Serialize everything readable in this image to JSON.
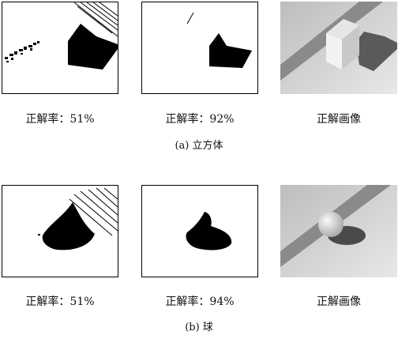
{
  "figures": [
    {
      "panels": [
        {
          "caption": "正解率：51%"
        },
        {
          "caption": "正解率：92%"
        },
        {
          "caption": "正解画像"
        }
      ],
      "subcaption": "(a) 立方体"
    },
    {
      "panels": [
        {
          "caption": "正解率：51%"
        },
        {
          "caption": "正解率：94%"
        },
        {
          "caption": "正解画像"
        }
      ],
      "subcaption": "(b) 球"
    }
  ]
}
